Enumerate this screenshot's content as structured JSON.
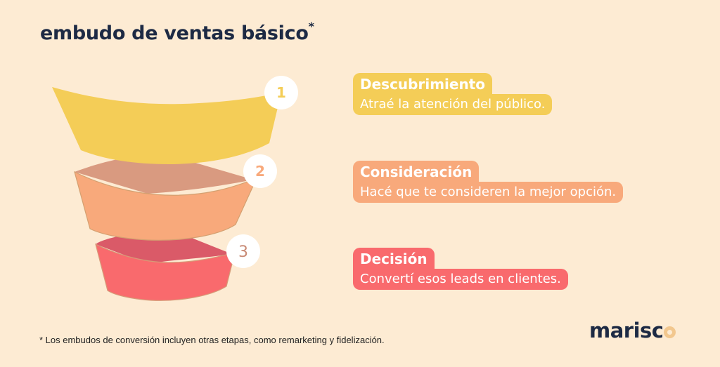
{
  "title": "embudo de ventas básico",
  "title_mark": "*",
  "colors": {
    "background": "#fdebd3",
    "title": "#1d2a44",
    "stage1": "#f4cd57",
    "stage2": "#f8a97b",
    "stage3": "#f96a6d"
  },
  "stages": [
    {
      "number": "1",
      "title": "Descubrimiento",
      "description": "Atraé la atención del público."
    },
    {
      "number": "2",
      "title": "Consideración",
      "description": "Hacé que te consideren la mejor opción."
    },
    {
      "number": "3",
      "title": "Decisión",
      "description": "Convertí esos leads en clientes."
    }
  ],
  "footnote": "* Los embudos de conversión incluyen otras etapas, como remarketing y fidelización.",
  "logo": {
    "text": "marisc"
  }
}
